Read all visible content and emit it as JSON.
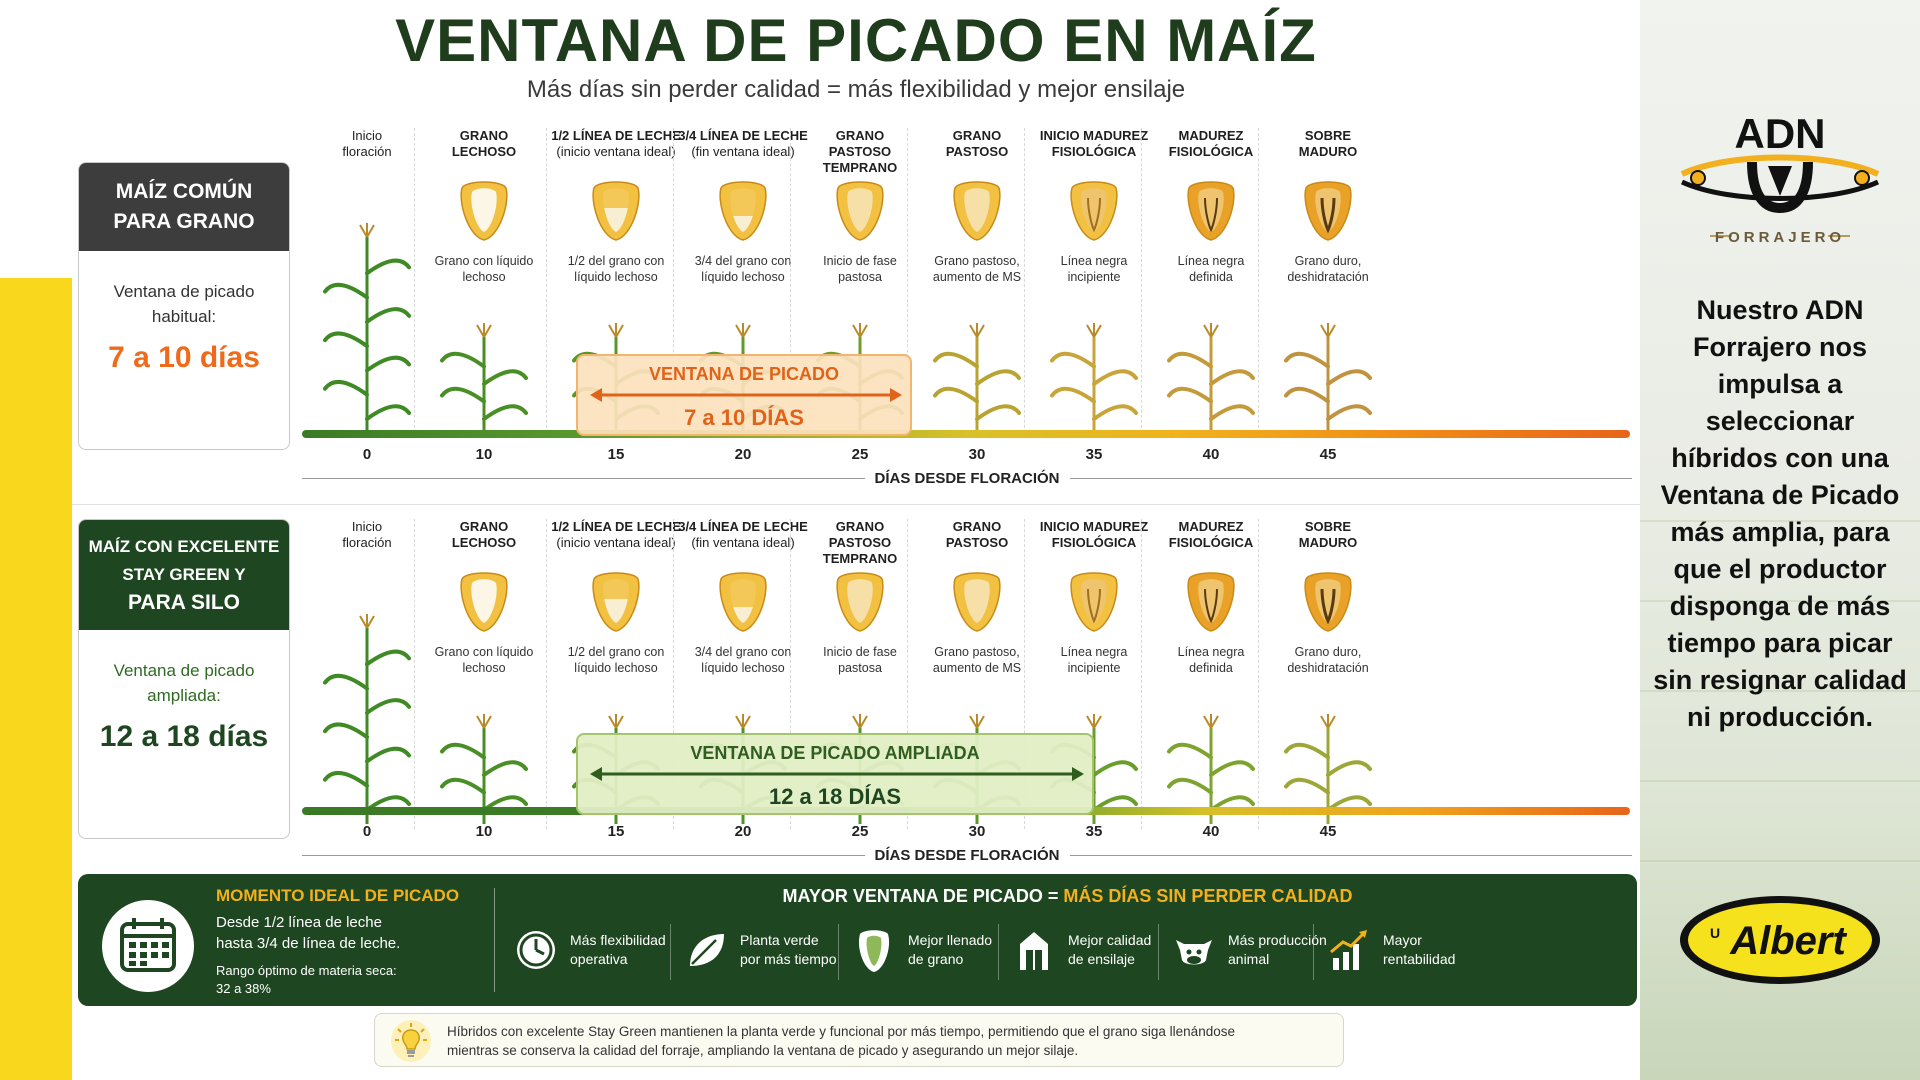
{
  "title": "VENTANA DE PICADO EN MAÍZ",
  "subtitle": "Más días sin perder calidad = más flexibilidad y mejor ensilaje",
  "stages": [
    {
      "label1": "Inicio",
      "label2": "floración",
      "label3": "",
      "desc1": "",
      "desc2": "",
      "day": "0",
      "bold": false
    },
    {
      "label1": "GRANO",
      "label2": "LECHOSO",
      "label3": "",
      "desc1": "Grano con líquido",
      "desc2": "lechoso",
      "day": "10",
      "bold": true
    },
    {
      "label1": "1/2 LÍNEA DE LECHE",
      "label2": "(inicio ventana ideal)",
      "label3": "",
      "desc1": "1/2 del grano con",
      "desc2": "líquido lechoso",
      "day": "15",
      "bold": true
    },
    {
      "label1": "3/4 LÍNEA DE LECHE",
      "label2": "(fin ventana ideal)",
      "label3": "",
      "desc1": "3/4 del grano con",
      "desc2": "líquido lechoso",
      "day": "20",
      "bold": true
    },
    {
      "label1": "GRANO",
      "label2": "PASTOSO",
      "label3": "TEMPRANO",
      "desc1": "Inicio de fase",
      "desc2": "pastosa",
      "day": "25",
      "bold": true
    },
    {
      "label1": "GRANO",
      "label2": "PASTOSO",
      "label3": "",
      "desc1": "Grano pastoso,",
      "desc2": "aumento de MS",
      "day": "30",
      "bold": true
    },
    {
      "label1": "INICIO MADUREZ",
      "label2": "FISIOLÓGICA",
      "label3": "",
      "desc1": "Línea negra",
      "desc2": "incipiente",
      "day": "35",
      "bold": true
    },
    {
      "label1": "MADUREZ",
      "label2": "FISIOLÓGICA",
      "label3": "",
      "desc1": "Línea negra",
      "desc2": "definida",
      "day": "40",
      "bold": true
    },
    {
      "label1": "SOBRE",
      "label2": "MADURO",
      "label3": "",
      "desc1": "Grano duro,",
      "desc2": "deshidratación",
      "day": "45",
      "bold": true
    }
  ],
  "axis_title": "DÍAS DESDE FLORACIÓN",
  "top_section": {
    "card_title1": "MAÍZ COMÚN",
    "card_title2": "PARA GRANO",
    "card_title3": "",
    "label1": "Ventana de picado",
    "label2": "habitual:",
    "value": "7 a 10 días",
    "window_title": "VENTANA DE PICADO",
    "window_value": "7 a 10 DÍAS",
    "head_color": "#3d3d3d",
    "accent": "#f06a1a"
  },
  "bottom_section": {
    "card_title1": "MAÍZ CON EXCELENTE",
    "card_title2": "STAY GREEN Y",
    "card_title3": "PARA SILO",
    "label1": "Ventana de picado",
    "label2": "ampliada:",
    "value": "12 a 18 días",
    "window_title": "VENTANA DE PICADO AMPLIADA",
    "window_value": "12 a 18 DÍAS",
    "head_color": "#1e4620",
    "accent": "#2f6a23"
  },
  "banner": {
    "ideal_title": "MOMENTO IDEAL DE PICADO",
    "ideal_text1": "Desde 1/2 línea de leche",
    "ideal_text2": "hasta 3/4 de línea de leche.",
    "ideal_note1": "Rango óptimo de materia seca:",
    "ideal_note2": "32 a 38%",
    "head_plain": "MAYOR VENTANA DE PICADO = ",
    "head_highlight": "MÁS DÍAS SIN PERDER CALIDAD",
    "benefits": [
      {
        "icon": "clock-icon",
        "line1": "Más flexibilidad",
        "line2": "operativa"
      },
      {
        "icon": "leaf-icon",
        "line1": "Planta verde",
        "line2": "por más tiempo"
      },
      {
        "icon": "kernel-icon",
        "line1": "Mejor llenado",
        "line2": "de grano"
      },
      {
        "icon": "silo-icon",
        "line1": "Mejor calidad",
        "line2": "de ensilaje"
      },
      {
        "icon": "cow-icon",
        "line1": "Más producción",
        "line2": "animal"
      },
      {
        "icon": "growth-chart-icon",
        "line1": "Mayor",
        "line2": "rentabilidad"
      }
    ]
  },
  "footnote": {
    "line1": "Híbridos con excelente Stay Green mantienen la planta verde y funcional por más tiempo, permitiendo que el grano siga llenándose",
    "line2": "mientras se conserva la calidad del forraje, ampliando la ventana de picado y asegurando un mejor silaje."
  },
  "brand": {
    "adn_logo_text": "ADN",
    "adn_logo_sub": "FORRAJERO",
    "message": "Nuestro ADN Forrajero nos impulsa a seleccionar híbridos con una Ventana de Picado más amplia, para que el productor disponga de más tiempo para picar sin resignar calidad ni producción.",
    "albert_logo_text": "Albert"
  },
  "colors": {
    "dark_green": "#1e4620",
    "orange": "#f06a1a",
    "gold": "#f2b01e",
    "yellow_strip": "#f8d71c"
  }
}
